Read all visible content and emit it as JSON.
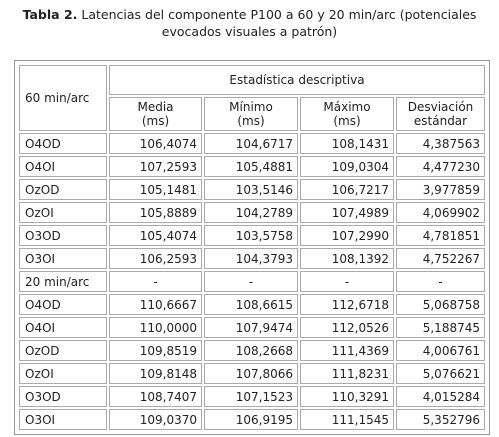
{
  "caption": {
    "label": "Tabla 2.",
    "text": " Latencias del componente P100 a 60 y 20 min/arc (potenciales",
    "text2": "evocados visuales a patrón)"
  },
  "table": {
    "corner_label": "60 min/arc",
    "group_header": "Estadística descriptiva",
    "columns": [
      {
        "line1": "Media",
        "line2": "(ms)"
      },
      {
        "line1": "Mínimo",
        "line2": "(ms)"
      },
      {
        "line1": "Máximo",
        "line2": "(ms)"
      },
      {
        "line1": "Desviación",
        "line2": "estándar"
      }
    ],
    "rows": [
      {
        "label": "O4OD",
        "values": [
          "106,4074",
          "104,6717",
          "108,1431",
          "4,387563"
        ]
      },
      {
        "label": "O4OI",
        "values": [
          "107,2593",
          "105,4881",
          "109,0304",
          "4,477230"
        ]
      },
      {
        "label": "OzOD",
        "values": [
          "105,1481",
          "103,5146",
          "106,7217",
          "3,977859"
        ]
      },
      {
        "label": "OzOI",
        "values": [
          "105,8889",
          "104,2789",
          "107,4989",
          "4,069902"
        ]
      },
      {
        "label": "O3OD",
        "values": [
          "105,4074",
          "103,5758",
          "107,2990",
          "4,781851"
        ]
      },
      {
        "label": "O3OI",
        "values": [
          "106,2593",
          "104,3793",
          "108,1392",
          "4,752267"
        ]
      },
      {
        "label": "20 min/arc",
        "values": [
          "-",
          "-",
          "-",
          "-"
        ]
      },
      {
        "label": "O4OD",
        "values": [
          "110,6667",
          "108,6615",
          "112,6718",
          "5,068758"
        ]
      },
      {
        "label": "O4OI",
        "values": [
          "110,0000",
          "107,9474",
          "112,0526",
          "5,188745"
        ]
      },
      {
        "label": "OzOD",
        "values": [
          "109,8519",
          "108,2668",
          "111,4369",
          "4,006761"
        ]
      },
      {
        "label": "OzOI",
        "values": [
          "109,8148",
          "107,8066",
          "111,8231",
          "5,076621"
        ]
      },
      {
        "label": "O3OD",
        "values": [
          "108,7407",
          "107,1523",
          "110,3291",
          "4,015284"
        ]
      },
      {
        "label": "O3OI",
        "values": [
          "109,0370",
          "106,9195",
          "111,1545",
          "5,352796"
        ]
      }
    ]
  }
}
